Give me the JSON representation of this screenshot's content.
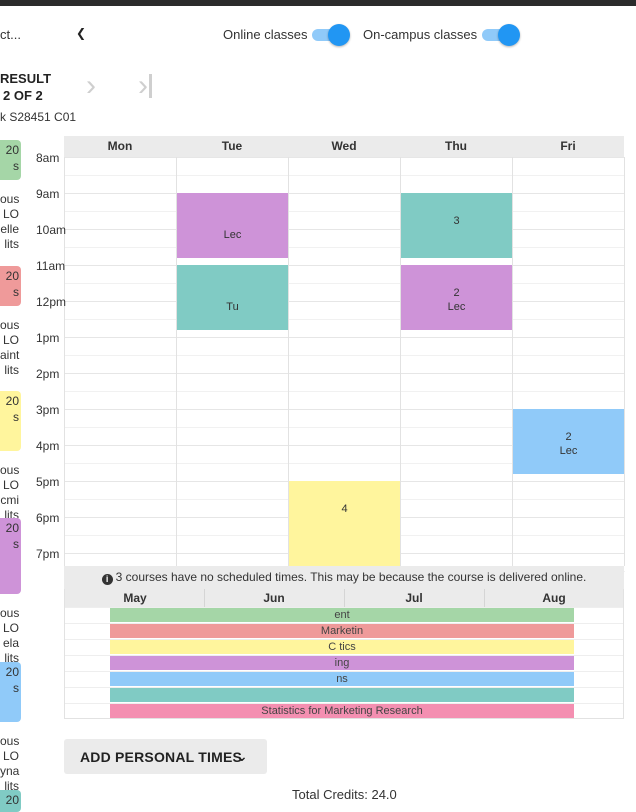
{
  "header": {
    "select_value": "ct...",
    "online_label": "Online classes",
    "oncampus_label": "On-campus classes",
    "online_on": true,
    "oncampus_on": true,
    "toggle_color": "#2196f3"
  },
  "result": {
    "line1": "RESULT",
    "line2": "2 OF 2",
    "section_code": "k S28451 C01"
  },
  "left_cards": [
    {
      "color": "#a5d6a7",
      "lines": [
        "20",
        "s"
      ],
      "details": [
        "ous",
        "LO",
        "elle",
        "lits"
      ]
    },
    {
      "color": "#ef9a9a",
      "lines": [
        "20",
        "s"
      ],
      "details": [
        "ous",
        "LO",
        "aint",
        "lits"
      ]
    },
    {
      "color": "#fff59d",
      "lines": [
        "20",
        "s"
      ],
      "details": [
        "ous",
        "LO",
        "cmi",
        "lits"
      ]
    },
    {
      "color": "#ce93d8",
      "lines": [
        "20",
        "s"
      ],
      "details": [
        "ous",
        "LO",
        "ela",
        "lits"
      ]
    },
    {
      "color": "#90caf9",
      "lines": [
        "20",
        "s"
      ],
      "details": [
        "ous",
        "LO",
        "yna",
        "lits"
      ]
    },
    {
      "color": "#80cbc4",
      "lines": [
        "20"
      ],
      "details": []
    }
  ],
  "calendar": {
    "days": [
      "Mon",
      "Tue",
      "Wed",
      "Thu",
      "Fri"
    ],
    "times": [
      "8am",
      "9am",
      "10am",
      "11am",
      "12pm",
      "1pm",
      "2pm",
      "3pm",
      "4pm",
      "5pm",
      "6pm",
      "7pm"
    ],
    "events": [
      {
        "day": 1,
        "start": 9.0,
        "end": 10.8,
        "color": "#ce93d8",
        "line1": "",
        "line2": "Lec"
      },
      {
        "day": 3,
        "start": 9.0,
        "end": 10.8,
        "color": "#80cbc4",
        "line1": "3",
        "line2": ""
      },
      {
        "day": 1,
        "start": 11.0,
        "end": 12.8,
        "color": "#80cbc4",
        "line1": "",
        "line2": "Tu"
      },
      {
        "day": 3,
        "start": 11.0,
        "end": 12.8,
        "color": "#ce93d8",
        "line1": "2",
        "line2": "Lec"
      },
      {
        "day": 4,
        "start": 15.0,
        "end": 16.8,
        "color": "#90caf9",
        "line1": "2",
        "line2": "Lec"
      },
      {
        "day": 2,
        "start": 17.0,
        "end": 20.0,
        "color": "#fff59d",
        "line1": "4",
        "line2": ""
      }
    ]
  },
  "notice": "3 courses have no scheduled times. This may be because the course is delivered online.",
  "timeline": {
    "months": [
      "May",
      "Jun",
      "Jul",
      "Aug"
    ],
    "rows": [
      {
        "color": "#a5d6a7",
        "label": "ent"
      },
      {
        "color": "#ef9a9a",
        "label": "Marketin"
      },
      {
        "color": "#fff59d",
        "label": "C                                      tics"
      },
      {
        "color": "#ce93d8",
        "label": "ing"
      },
      {
        "color": "#90caf9",
        "label": "ns"
      },
      {
        "color": "#80cbc4",
        "label": ""
      },
      {
        "color": "#f48fb1",
        "label": "Statistics for Marketing Research"
      }
    ]
  },
  "actions": {
    "add_personal_times": "ADD PERSONAL TIMES"
  },
  "footer": {
    "total_credits": "Total Credits: 24.0"
  }
}
